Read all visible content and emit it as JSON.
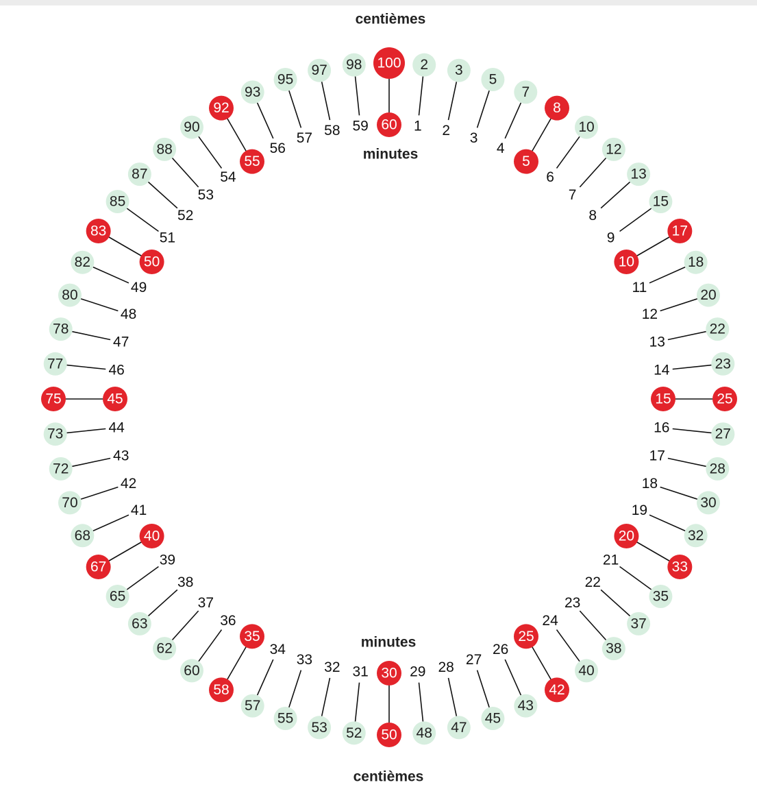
{
  "labels": {
    "centiemes_top": "centièmes",
    "minutes_top": "minutes",
    "minutes_bottom": "minutes",
    "centiemes_bottom": "centièmes"
  },
  "pairs": [
    {
      "minute": "1",
      "centieme": "2",
      "highlight": false
    },
    {
      "minute": "2",
      "centieme": "3",
      "highlight": false
    },
    {
      "minute": "3",
      "centieme": "5",
      "highlight": false
    },
    {
      "minute": "4",
      "centieme": "7",
      "highlight": false
    },
    {
      "minute": "5",
      "centieme": "8",
      "highlight": true
    },
    {
      "minute": "6",
      "centieme": "10",
      "highlight": false
    },
    {
      "minute": "7",
      "centieme": "12",
      "highlight": false
    },
    {
      "minute": "8",
      "centieme": "13",
      "highlight": false
    },
    {
      "minute": "9",
      "centieme": "15",
      "highlight": false
    },
    {
      "minute": "10",
      "centieme": "17",
      "highlight": true
    },
    {
      "minute": "11",
      "centieme": "18",
      "highlight": false
    },
    {
      "minute": "12",
      "centieme": "20",
      "highlight": false
    },
    {
      "minute": "13",
      "centieme": "22",
      "highlight": false
    },
    {
      "minute": "14",
      "centieme": "23",
      "highlight": false
    },
    {
      "minute": "15",
      "centieme": "25",
      "highlight": true
    },
    {
      "minute": "16",
      "centieme": "27",
      "highlight": false
    },
    {
      "minute": "17",
      "centieme": "28",
      "highlight": false
    },
    {
      "minute": "18",
      "centieme": "30",
      "highlight": false
    },
    {
      "minute": "19",
      "centieme": "32",
      "highlight": false
    },
    {
      "minute": "20",
      "centieme": "33",
      "highlight": true
    },
    {
      "minute": "21",
      "centieme": "35",
      "highlight": false
    },
    {
      "minute": "22",
      "centieme": "37",
      "highlight": false
    },
    {
      "minute": "23",
      "centieme": "38",
      "highlight": false
    },
    {
      "minute": "24",
      "centieme": "40",
      "highlight": false
    },
    {
      "minute": "25",
      "centieme": "42",
      "highlight": true
    },
    {
      "minute": "26",
      "centieme": "43",
      "highlight": false
    },
    {
      "minute": "27",
      "centieme": "45",
      "highlight": false
    },
    {
      "minute": "28",
      "centieme": "47",
      "highlight": false
    },
    {
      "minute": "29",
      "centieme": "48",
      "highlight": false
    },
    {
      "minute": "30",
      "centieme": "50",
      "highlight": true
    },
    {
      "minute": "31",
      "centieme": "52",
      "highlight": false
    },
    {
      "minute": "32",
      "centieme": "53",
      "highlight": false
    },
    {
      "minute": "33",
      "centieme": "55",
      "highlight": false
    },
    {
      "minute": "34",
      "centieme": "57",
      "highlight": false
    },
    {
      "minute": "35",
      "centieme": "58",
      "highlight": true
    },
    {
      "minute": "36",
      "centieme": "60",
      "highlight": false
    },
    {
      "minute": "37",
      "centieme": "62",
      "highlight": false
    },
    {
      "minute": "38",
      "centieme": "63",
      "highlight": false
    },
    {
      "minute": "39",
      "centieme": "65",
      "highlight": false
    },
    {
      "minute": "40",
      "centieme": "67",
      "highlight": true
    },
    {
      "minute": "41",
      "centieme": "68",
      "highlight": false
    },
    {
      "minute": "42",
      "centieme": "70",
      "highlight": false
    },
    {
      "minute": "43",
      "centieme": "72",
      "highlight": false
    },
    {
      "minute": "44",
      "centieme": "73",
      "highlight": false
    },
    {
      "minute": "45",
      "centieme": "75",
      "highlight": true
    },
    {
      "minute": "46",
      "centieme": "77",
      "highlight": false
    },
    {
      "minute": "47",
      "centieme": "78",
      "highlight": false
    },
    {
      "minute": "48",
      "centieme": "80",
      "highlight": false
    },
    {
      "minute": "49",
      "centieme": "82",
      "highlight": false
    },
    {
      "minute": "50",
      "centieme": "83",
      "highlight": true
    },
    {
      "minute": "51",
      "centieme": "85",
      "highlight": false
    },
    {
      "minute": "52",
      "centieme": "87",
      "highlight": false
    },
    {
      "minute": "53",
      "centieme": "88",
      "highlight": false
    },
    {
      "minute": "54",
      "centieme": "90",
      "highlight": false
    },
    {
      "minute": "55",
      "centieme": "92",
      "highlight": true
    },
    {
      "minute": "56",
      "centieme": "93",
      "highlight": false
    },
    {
      "minute": "57",
      "centieme": "95",
      "highlight": false
    },
    {
      "minute": "58",
      "centieme": "97",
      "highlight": false
    },
    {
      "minute": "59",
      "centieme": "98",
      "highlight": false
    },
    {
      "minute": "60",
      "centieme": "100",
      "highlight": true
    }
  ]
}
